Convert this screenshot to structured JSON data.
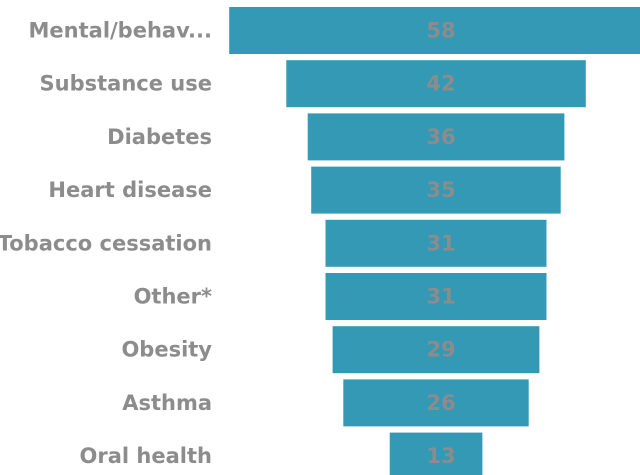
{
  "chart_data": {
    "type": "bar",
    "orientation": "horizontal-funnel",
    "categories": [
      "Mental/behav...",
      "Substance use",
      "Diabetes",
      "Heart disease",
      "Tobacco cessation",
      "Other*",
      "Obesity",
      "Asthma",
      "Oral health"
    ],
    "values": [
      58,
      42,
      36,
      35,
      31,
      31,
      29,
      26,
      13
    ],
    "data_labels": [
      "58",
      "42",
      "36",
      "35",
      "31",
      "31",
      "29",
      "26",
      "13"
    ],
    "title": "",
    "xlabel": "",
    "ylabel": "",
    "grid": false,
    "legend": "none",
    "colors": {
      "bar": "#3399b5",
      "category_label": "#8c8c8c",
      "value_label": "#8c8c8c"
    }
  }
}
